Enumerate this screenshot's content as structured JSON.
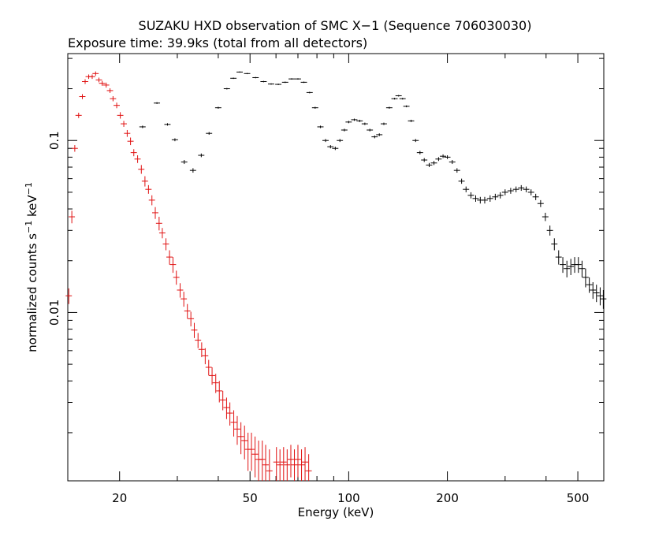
{
  "title_line1": "SUZAKU HXD observation of SMC X−1 (Sequence 706030030)",
  "title_line2": "Exposure time: 39.9ks (total from all detectors)",
  "colors": {
    "pin": "#e01010",
    "gso": "#000000",
    "axes": "#000000"
  },
  "chart_data": {
    "type": "scatter",
    "xlabel": "Energy (keV)",
    "ylabel_parts": {
      "pre": "normalized counts s",
      "exp1": "−1",
      "mid": " keV",
      "exp2": "−1"
    },
    "xscale": "log",
    "yscale": "log",
    "xlim": [
      13.9,
      600
    ],
    "ylim": [
      0.00105,
      0.32
    ],
    "x_ticks": [
      20,
      50,
      100,
      200,
      500
    ],
    "x_tick_labels": [
      "20",
      "50",
      "100",
      "200",
      "500"
    ],
    "y_ticks": [
      0.01,
      0.1
    ],
    "y_tick_labels": [
      "0.01",
      "0.1"
    ],
    "series": [
      {
        "color": "#e01010",
        "points": [
          [
            14.0,
            0.0125,
            0.0013
          ],
          [
            14.3,
            0.036,
            0.003
          ],
          [
            14.6,
            0.09,
            0.004
          ],
          [
            15.0,
            0.14,
            0.005
          ],
          [
            15.4,
            0.18,
            0.006
          ],
          [
            15.7,
            0.22,
            0.007
          ],
          [
            16.1,
            0.235,
            0.007
          ],
          [
            16.5,
            0.235,
            0.007
          ],
          [
            16.9,
            0.245,
            0.007
          ],
          [
            17.3,
            0.225,
            0.007
          ],
          [
            17.7,
            0.215,
            0.007
          ],
          [
            18.2,
            0.21,
            0.007
          ],
          [
            18.7,
            0.195,
            0.006
          ],
          [
            19.1,
            0.175,
            0.006
          ],
          [
            19.6,
            0.16,
            0.006
          ],
          [
            20.1,
            0.14,
            0.006
          ],
          [
            20.6,
            0.125,
            0.005
          ],
          [
            21.1,
            0.11,
            0.005
          ],
          [
            21.6,
            0.099,
            0.005
          ],
          [
            22.1,
            0.085,
            0.004
          ],
          [
            22.7,
            0.078,
            0.004
          ],
          [
            23.3,
            0.068,
            0.004
          ],
          [
            23.9,
            0.058,
            0.004
          ],
          [
            24.5,
            0.052,
            0.003
          ],
          [
            25.1,
            0.045,
            0.003
          ],
          [
            25.7,
            0.038,
            0.003
          ],
          [
            26.4,
            0.033,
            0.003
          ],
          [
            27.0,
            0.029,
            0.002
          ],
          [
            27.7,
            0.025,
            0.002
          ],
          [
            28.4,
            0.021,
            0.002
          ],
          [
            29.1,
            0.019,
            0.002
          ],
          [
            29.8,
            0.016,
            0.0015
          ],
          [
            30.6,
            0.0135,
            0.0013
          ],
          [
            31.4,
            0.012,
            0.0012
          ],
          [
            32.2,
            0.0102,
            0.001
          ],
          [
            33.0,
            0.0092,
            0.0009
          ],
          [
            33.8,
            0.0079,
            0.0008
          ],
          [
            34.7,
            0.0069,
            0.0007
          ],
          [
            35.6,
            0.0061,
            0.0006
          ],
          [
            36.5,
            0.0056,
            0.0006
          ],
          [
            37.4,
            0.0048,
            0.0005
          ],
          [
            38.3,
            0.0043,
            0.0005
          ],
          [
            39.3,
            0.0039,
            0.0005
          ],
          [
            40.3,
            0.0035,
            0.0005
          ],
          [
            41.3,
            0.0031,
            0.0004
          ],
          [
            42.4,
            0.0028,
            0.0004
          ],
          [
            43.4,
            0.0026,
            0.0004
          ],
          [
            44.6,
            0.0023,
            0.0004
          ],
          [
            45.7,
            0.0021,
            0.0004
          ],
          [
            46.9,
            0.0019,
            0.0004
          ],
          [
            48.1,
            0.0018,
            0.0004
          ],
          [
            49.3,
            0.0016,
            0.0004
          ],
          [
            50.5,
            0.0016,
            0.0004
          ],
          [
            51.8,
            0.0015,
            0.0004
          ],
          [
            53.1,
            0.0014,
            0.0004
          ],
          [
            54.5,
            0.0014,
            0.0004
          ],
          [
            55.8,
            0.0013,
            0.0004
          ],
          [
            57.3,
            0.0012,
            0.0004
          ],
          [
            60.2,
            0.00135,
            0.0003
          ],
          [
            61.7,
            0.0013,
            0.0003
          ],
          [
            63.3,
            0.00135,
            0.0003
          ],
          [
            64.9,
            0.0013,
            0.0003
          ],
          [
            66.6,
            0.0014,
            0.0003
          ],
          [
            68.3,
            0.0013,
            0.0003
          ],
          [
            70.0,
            0.0014,
            0.0003
          ],
          [
            71.8,
            0.0013,
            0.0003
          ],
          [
            73.6,
            0.00135,
            0.0003
          ],
          [
            75.5,
            0.0012,
            0.0003
          ]
        ]
      },
      {
        "color": "#000000",
        "points": [
          [
            23.5,
            0.12,
            0.002
          ],
          [
            26.0,
            0.165,
            0.002
          ],
          [
            28.0,
            0.124,
            0.002
          ],
          [
            29.5,
            0.101,
            0.002
          ],
          [
            31.5,
            0.075,
            0.002
          ],
          [
            33.5,
            0.067,
            0.002
          ],
          [
            35.5,
            0.082,
            0.002
          ],
          [
            37.5,
            0.11,
            0.002
          ],
          [
            40.0,
            0.155,
            0.002
          ],
          [
            42.5,
            0.2,
            0.002
          ],
          [
            44.5,
            0.23,
            0.002
          ],
          [
            46.5,
            0.25,
            0.002
          ],
          [
            49.0,
            0.245,
            0.002
          ],
          [
            52.0,
            0.232,
            0.002
          ],
          [
            55.0,
            0.22,
            0.002
          ],
          [
            58.0,
            0.213,
            0.002
          ],
          [
            61.0,
            0.212,
            0.002
          ],
          [
            64.0,
            0.218,
            0.002
          ],
          [
            67.0,
            0.228,
            0.002
          ],
          [
            70.0,
            0.228,
            0.002
          ],
          [
            73.0,
            0.218,
            0.002
          ],
          [
            76.0,
            0.19,
            0.002
          ],
          [
            79.0,
            0.155,
            0.002
          ],
          [
            82.0,
            0.12,
            0.002
          ],
          [
            85.0,
            0.1,
            0.002
          ],
          [
            88.0,
            0.092,
            0.002
          ],
          [
            91.0,
            0.09,
            0.002
          ],
          [
            94.0,
            0.1,
            0.002
          ],
          [
            97.0,
            0.115,
            0.002
          ],
          [
            100.0,
            0.128,
            0.002
          ],
          [
            104.0,
            0.132,
            0.002
          ],
          [
            108.0,
            0.13,
            0.002
          ],
          [
            112.0,
            0.125,
            0.002
          ],
          [
            116.0,
            0.115,
            0.002
          ],
          [
            120.0,
            0.105,
            0.002
          ],
          [
            124.0,
            0.108,
            0.002
          ],
          [
            128.0,
            0.125,
            0.002
          ],
          [
            133.0,
            0.155,
            0.002
          ],
          [
            138.0,
            0.175,
            0.002
          ],
          [
            142.0,
            0.182,
            0.002
          ],
          [
            146.0,
            0.175,
            0.002
          ],
          [
            150.0,
            0.158,
            0.002
          ],
          [
            155.0,
            0.13,
            0.002
          ],
          [
            160.0,
            0.1,
            0.002
          ],
          [
            165.0,
            0.085,
            0.002
          ],
          [
            170.0,
            0.077,
            0.002
          ],
          [
            176.0,
            0.072,
            0.002
          ],
          [
            182.0,
            0.074,
            0.002
          ],
          [
            188.0,
            0.078,
            0.002
          ],
          [
            194.0,
            0.081,
            0.002
          ],
          [
            200.0,
            0.08,
            0.002
          ],
          [
            207.0,
            0.075,
            0.002
          ],
          [
            214.0,
            0.067,
            0.002
          ],
          [
            221.0,
            0.058,
            0.002
          ],
          [
            228.0,
            0.052,
            0.002
          ],
          [
            236.0,
            0.048,
            0.002
          ],
          [
            244.0,
            0.046,
            0.002
          ],
          [
            252.0,
            0.045,
            0.002
          ],
          [
            260.0,
            0.045,
            0.002
          ],
          [
            270.0,
            0.046,
            0.002
          ],
          [
            280.0,
            0.047,
            0.002
          ],
          [
            290.0,
            0.048,
            0.002
          ],
          [
            300.0,
            0.05,
            0.002
          ],
          [
            312.0,
            0.051,
            0.002
          ],
          [
            324.0,
            0.052,
            0.002
          ],
          [
            336.0,
            0.053,
            0.002
          ],
          [
            348.0,
            0.052,
            0.002
          ],
          [
            360.0,
            0.05,
            0.002
          ],
          [
            372.0,
            0.047,
            0.002
          ],
          [
            385.0,
            0.043,
            0.002
          ],
          [
            398.0,
            0.036,
            0.002
          ],
          [
            411.0,
            0.03,
            0.002
          ],
          [
            424.0,
            0.025,
            0.002
          ],
          [
            437.0,
            0.021,
            0.002
          ],
          [
            450.0,
            0.019,
            0.002
          ],
          [
            463.0,
            0.018,
            0.002
          ],
          [
            476.0,
            0.0185,
            0.002
          ],
          [
            489.0,
            0.019,
            0.002
          ],
          [
            502.0,
            0.019,
            0.002
          ],
          [
            515.0,
            0.018,
            0.002
          ],
          [
            528.0,
            0.016,
            0.002
          ],
          [
            542.0,
            0.0145,
            0.0015
          ],
          [
            556.0,
            0.0135,
            0.0015
          ],
          [
            570.0,
            0.013,
            0.0015
          ],
          [
            585.0,
            0.0125,
            0.0015
          ],
          [
            598.0,
            0.012,
            0.0015
          ]
        ]
      }
    ]
  }
}
